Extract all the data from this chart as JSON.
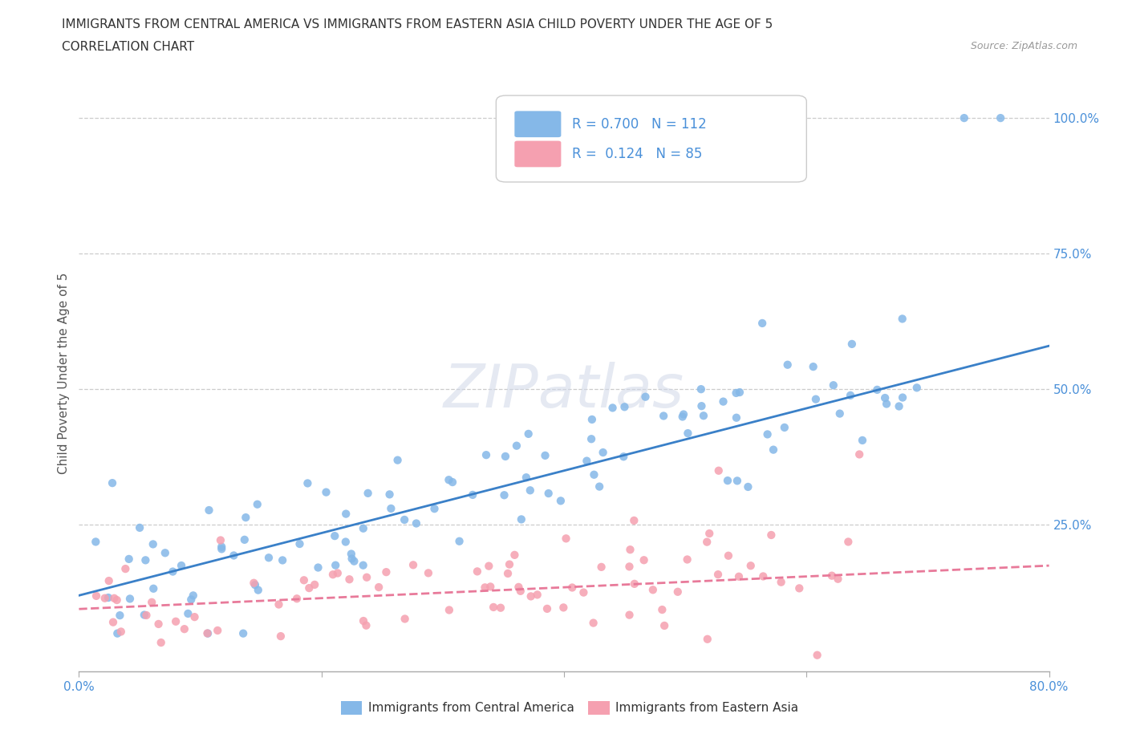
{
  "title_line1": "IMMIGRANTS FROM CENTRAL AMERICA VS IMMIGRANTS FROM EASTERN ASIA CHILD POVERTY UNDER THE AGE OF 5",
  "title_line2": "CORRELATION CHART",
  "source_text": "Source: ZipAtlas.com",
  "ylabel": "Child Poverty Under the Age of 5",
  "xlim": [
    0,
    0.8
  ],
  "ylim": [
    -0.02,
    1.08
  ],
  "blue_color": "#85b8e8",
  "pink_color": "#f5a0b0",
  "blue_line_color": "#3a80c8",
  "pink_line_color": "#e87a9a",
  "legend_R1": "R = 0.700",
  "legend_N1": "N = 112",
  "legend_R2": "R =  0.124",
  "legend_N2": "N = 85",
  "blue_trend_x": [
    0.0,
    0.8
  ],
  "blue_trend_y": [
    0.12,
    0.58
  ],
  "pink_trend_x": [
    0.0,
    0.8
  ],
  "pink_trend_y": [
    0.095,
    0.175
  ],
  "bg_color": "#ffffff",
  "grid_color": "#cccccc",
  "tick_color": "#4a90d9",
  "axis_label_color": "#555555"
}
